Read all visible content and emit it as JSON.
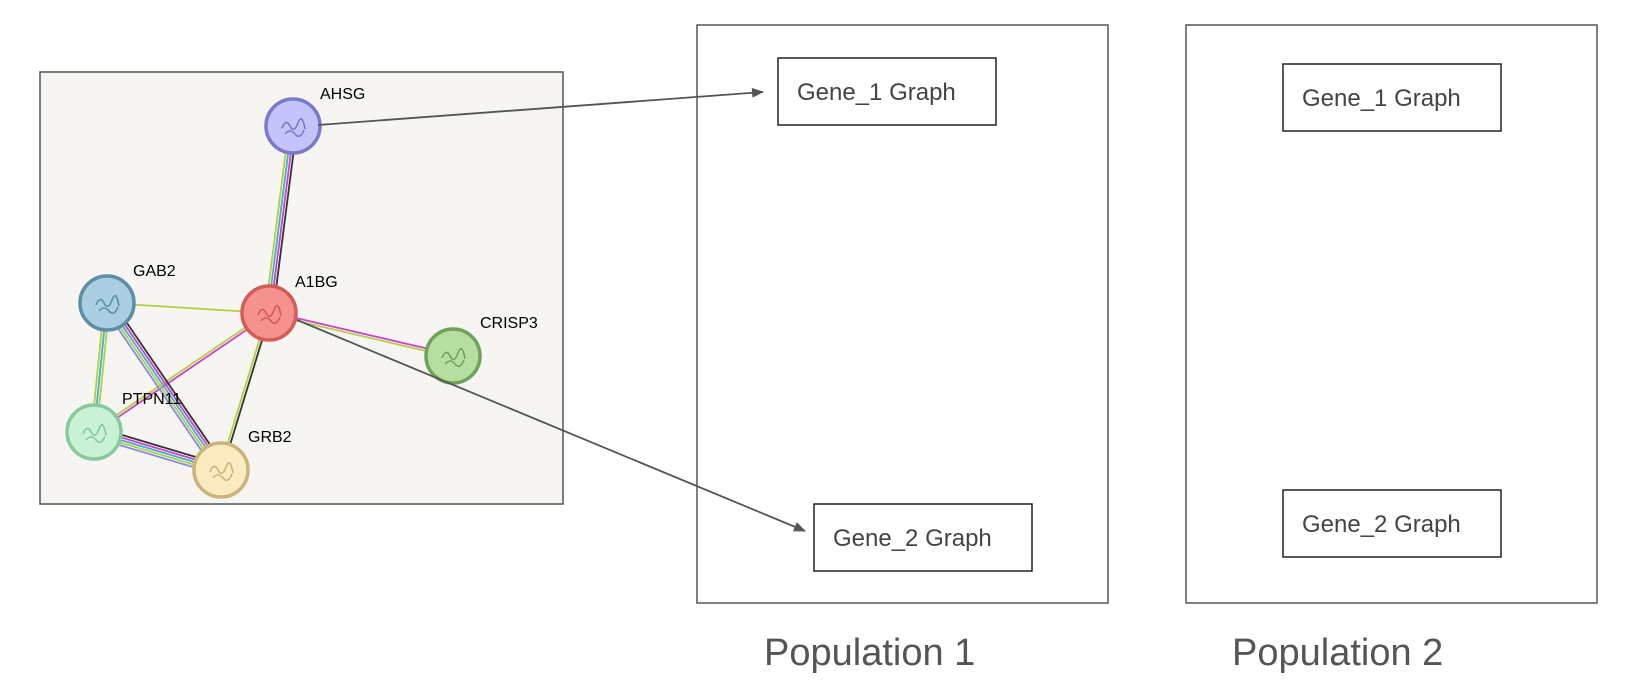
{
  "network": {
    "nodes": [
      {
        "id": "AHSG",
        "label": "AHSG",
        "color": "#c4c4fa",
        "stroke": "#7a7ac8"
      },
      {
        "id": "A1BG",
        "label": "A1BG",
        "color": "#f5928e",
        "stroke": "#d45c58"
      },
      {
        "id": "GAB2",
        "label": "GAB2",
        "color": "#a9cfe0",
        "stroke": "#5c8ea8"
      },
      {
        "id": "CRISP3",
        "label": "CRISP3",
        "color": "#b7dea1",
        "stroke": "#6fa25a"
      },
      {
        "id": "PTPN11",
        "label": "PTPN11",
        "color": "#c9f2d4",
        "stroke": "#88c99c"
      },
      {
        "id": "GRB2",
        "label": "GRB2",
        "color": "#fbebc1",
        "stroke": "#c8b57a"
      }
    ],
    "edges": [
      {
        "source": "AHSG",
        "target": "A1BG",
        "colors": [
          "#333333",
          "#d040d0",
          "#40b0d0",
          "#b0d040"
        ]
      },
      {
        "source": "GAB2",
        "target": "A1BG",
        "colors": [
          "#b0d040"
        ]
      },
      {
        "source": "A1BG",
        "target": "CRISP3",
        "colors": [
          "#d040d0",
          "#b0d040"
        ]
      },
      {
        "source": "A1BG",
        "target": "PTPN11",
        "colors": [
          "#d040d0",
          "#b0d040"
        ]
      },
      {
        "source": "A1BG",
        "target": "GRB2",
        "colors": [
          "#333333",
          "#b0d040"
        ]
      },
      {
        "source": "GAB2",
        "target": "PTPN11",
        "colors": [
          "#b0d040",
          "#40b0d0",
          "#b0d040"
        ]
      },
      {
        "source": "GAB2",
        "target": "GRB2",
        "colors": [
          "#333333",
          "#d040d0",
          "#40b0d0",
          "#b0d040",
          "#8888ee"
        ]
      },
      {
        "source": "PTPN11",
        "target": "GRB2",
        "colors": [
          "#333333",
          "#d040d0",
          "#40b0d0",
          "#b0d040",
          "#8888ee"
        ]
      }
    ]
  },
  "populations": [
    {
      "label": "Population 1",
      "gene1": "Gene_1 Graph",
      "gene2": "Gene_2 Graph"
    },
    {
      "label": "Population 2",
      "gene1": "Gene_1 Graph",
      "gene2": "Gene_2 Graph"
    }
  ],
  "arrows": [
    {
      "from": "AHSG",
      "to": "Population 1 / Gene_1 Graph"
    },
    {
      "from": "A1BG",
      "to": "Population 1 / Gene_2 Graph"
    }
  ]
}
